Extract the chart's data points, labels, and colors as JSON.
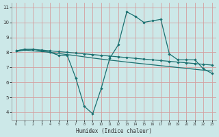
{
  "xlabel": "Humidex (Indice chaleur)",
  "background_color": "#cce8e8",
  "grid_color": "#d4a0a0",
  "line_color": "#1a7070",
  "xlim": [
    -0.5,
    23.5
  ],
  "ylim": [
    3.5,
    11.3
  ],
  "xticks": [
    0,
    1,
    2,
    3,
    4,
    5,
    6,
    7,
    8,
    9,
    10,
    11,
    12,
    13,
    14,
    15,
    16,
    17,
    18,
    19,
    20,
    21,
    22,
    23
  ],
  "yticks": [
    4,
    5,
    6,
    7,
    8,
    9,
    10,
    11
  ],
  "line1_x": [
    0,
    1,
    2,
    3,
    4,
    5,
    6,
    7,
    8,
    9,
    10,
    11,
    12,
    13,
    14,
    15,
    16,
    17,
    18,
    19,
    20,
    21,
    22,
    23
  ],
  "line1_y": [
    8.1,
    8.2,
    8.2,
    8.1,
    8.0,
    7.8,
    7.8,
    6.3,
    4.4,
    3.9,
    5.6,
    7.6,
    8.5,
    10.7,
    10.4,
    10.0,
    10.1,
    10.2,
    7.9,
    7.5,
    7.5,
    7.5,
    6.9,
    6.6
  ],
  "line2_x": [
    0,
    1,
    2,
    3,
    4,
    5,
    6,
    7,
    8,
    9,
    10,
    11,
    12,
    13,
    14,
    15,
    16,
    17,
    18,
    19,
    20,
    21,
    22,
    23
  ],
  "line2_y": [
    8.1,
    8.2,
    8.2,
    8.15,
    8.1,
    8.05,
    8.0,
    7.95,
    7.9,
    7.85,
    7.8,
    7.75,
    7.7,
    7.65,
    7.6,
    7.55,
    7.5,
    7.45,
    7.4,
    7.35,
    7.3,
    7.25,
    7.2,
    7.15
  ],
  "line3_x": [
    0,
    1,
    2,
    3,
    4,
    5,
    6,
    7,
    8,
    9,
    10,
    11,
    12,
    13,
    14,
    15,
    16,
    17,
    18,
    19,
    20,
    21,
    22,
    23
  ],
  "line3_y": [
    8.05,
    8.15,
    8.1,
    8.05,
    8.0,
    7.92,
    7.85,
    7.78,
    7.7,
    7.62,
    7.55,
    7.48,
    7.42,
    7.35,
    7.29,
    7.23,
    7.17,
    7.11,
    7.05,
    6.99,
    6.93,
    6.87,
    6.81,
    6.75
  ]
}
